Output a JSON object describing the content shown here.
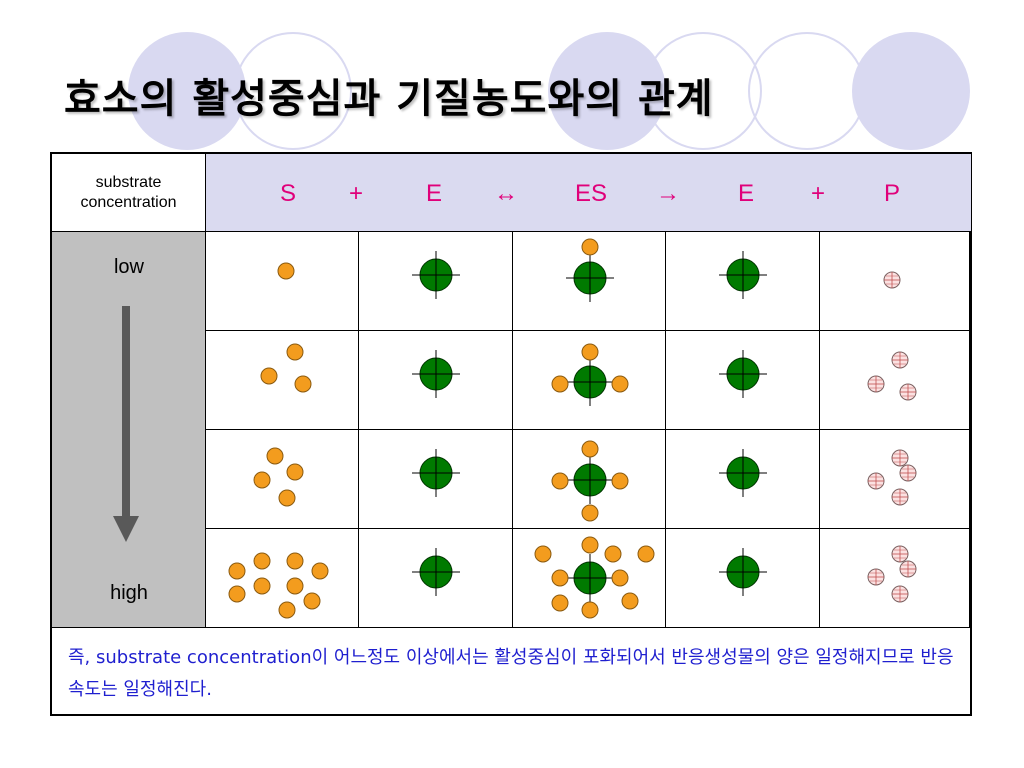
{
  "title": "효소의 활성중심과 기질농도와의 관계",
  "table": {
    "header_label": "substrate concentration",
    "equation_tokens": [
      "S",
      "+",
      "E",
      "↔",
      "ES",
      "→",
      "E",
      "+",
      "P"
    ],
    "row_low_label": "low",
    "row_high_label": "high",
    "columns": [
      "S",
      "E",
      "ES",
      "E",
      "P"
    ],
    "rows": [
      {
        "S_count": 1,
        "ES_bound_substrates": 1,
        "P_count": 1
      },
      {
        "S_count": 3,
        "ES_bound_substrates": 3,
        "P_count": 3
      },
      {
        "S_count": 4,
        "ES_bound_substrates": 4,
        "P_count": 4
      },
      {
        "S_count": 9,
        "ES_bound_substrates": 10,
        "P_count": 4
      }
    ]
  },
  "footer_text": "즉, substrate concentration이 어느정도 이상에서는 활성중심이 포화되어서 반응생성물의 양은 일정해지므로 반응속도는 일정해진다.",
  "colors": {
    "substrate": "#f39c1e",
    "enzyme": "#007a00",
    "product": "#fbe1e1",
    "equation": "#e0007a",
    "footer": "#1f1fcf",
    "header_bg": "#dadaf0"
  }
}
